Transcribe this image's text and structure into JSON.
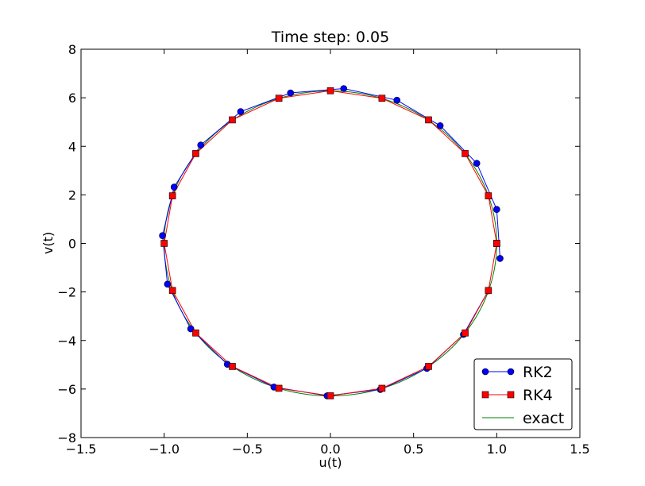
{
  "chart_data": {
    "type": "line",
    "title": "Time step: 0.05",
    "xlabel": "u(t)",
    "ylabel": "v(t)",
    "xlim": [
      -1.5,
      1.5
    ],
    "ylim": [
      -8,
      8
    ],
    "xticks": [
      -1.5,
      -1.0,
      -0.5,
      0.0,
      0.5,
      1.0,
      1.5
    ],
    "yticks": [
      -8,
      -6,
      -4,
      -2,
      0,
      2,
      4,
      6,
      8
    ],
    "xtick_labels": [
      "−1.5",
      "−1.0",
      "−0.5",
      "0.0",
      "0.5",
      "1.0",
      "1.5"
    ],
    "ytick_labels": [
      "−8",
      "−6",
      "−4",
      "−2",
      "0",
      "2",
      "4",
      "6",
      "8"
    ],
    "grid": false,
    "legend_position": "bottom-right",
    "series": [
      {
        "name": "RK2",
        "color": "#0000ff",
        "marker": "circle",
        "points": [
          [
            1.02,
            -0.62
          ],
          [
            1.0,
            1.4
          ],
          [
            0.88,
            3.3
          ],
          [
            0.66,
            4.85
          ],
          [
            0.4,
            5.9
          ],
          [
            0.08,
            6.38
          ],
          [
            -0.24,
            6.2
          ],
          [
            -0.54,
            5.43
          ],
          [
            -0.78,
            4.05
          ],
          [
            -0.94,
            2.32
          ],
          [
            -1.01,
            0.32
          ],
          [
            -0.98,
            -1.68
          ],
          [
            -0.84,
            -3.52
          ],
          [
            -0.62,
            -4.98
          ],
          [
            -0.34,
            -5.92
          ],
          [
            -0.02,
            -6.28
          ],
          [
            0.3,
            -6.02
          ],
          [
            0.58,
            -5.15
          ],
          [
            0.8,
            -3.75
          ],
          [
            0.95,
            -1.95
          ]
        ]
      },
      {
        "name": "RK4",
        "color": "#ff0000",
        "marker": "square",
        "points": [
          [
            1.0,
            0.0
          ],
          [
            0.95,
            1.96
          ],
          [
            0.81,
            3.7
          ],
          [
            0.59,
            5.09
          ],
          [
            0.31,
            5.98
          ],
          [
            0.0,
            6.29
          ],
          [
            -0.31,
            5.98
          ],
          [
            -0.59,
            5.09
          ],
          [
            -0.81,
            3.7
          ],
          [
            -0.95,
            1.96
          ],
          [
            -1.0,
            0.0
          ],
          [
            -0.95,
            -1.94
          ],
          [
            -0.81,
            -3.69
          ],
          [
            -0.59,
            -5.07
          ],
          [
            -0.31,
            -5.97
          ],
          [
            0.0,
            -6.28
          ],
          [
            0.31,
            -5.97
          ],
          [
            0.59,
            -5.07
          ],
          [
            0.81,
            -3.69
          ],
          [
            0.95,
            -1.94
          ],
          [
            1.0,
            0.0
          ]
        ]
      },
      {
        "name": "exact",
        "color": "#008000",
        "marker": "none",
        "function": "u = cos(t), v = -2*pi*sin(2*pi*t)"
      }
    ]
  }
}
